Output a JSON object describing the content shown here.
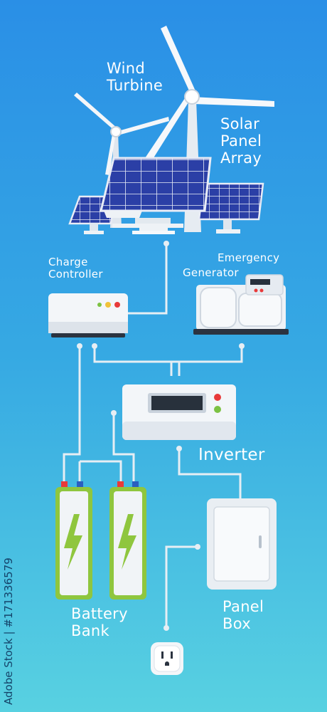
{
  "labels": {
    "wind_turbine": [
      "Wind",
      "Turbine"
    ],
    "solar_panel_array": [
      "Solar",
      "Panel",
      "Array"
    ],
    "charge_controller": [
      "Charge",
      "Controller"
    ],
    "emergency_generator": [
      "Emergency",
      "Generator"
    ],
    "inverter": "Inverter",
    "battery_bank": [
      "Battery",
      "Bank"
    ],
    "panel_box": [
      "Panel",
      "Box"
    ]
  },
  "watermark": "Adobe Stock | #171336579",
  "colors": {
    "wire": "#e6eef4",
    "solar_cell": "#2a3fa8",
    "battery_bolt": "#8fc63e",
    "led_red": "#e83a3a",
    "led_green": "#7cc243",
    "led_yellow": "#f0c23a"
  }
}
